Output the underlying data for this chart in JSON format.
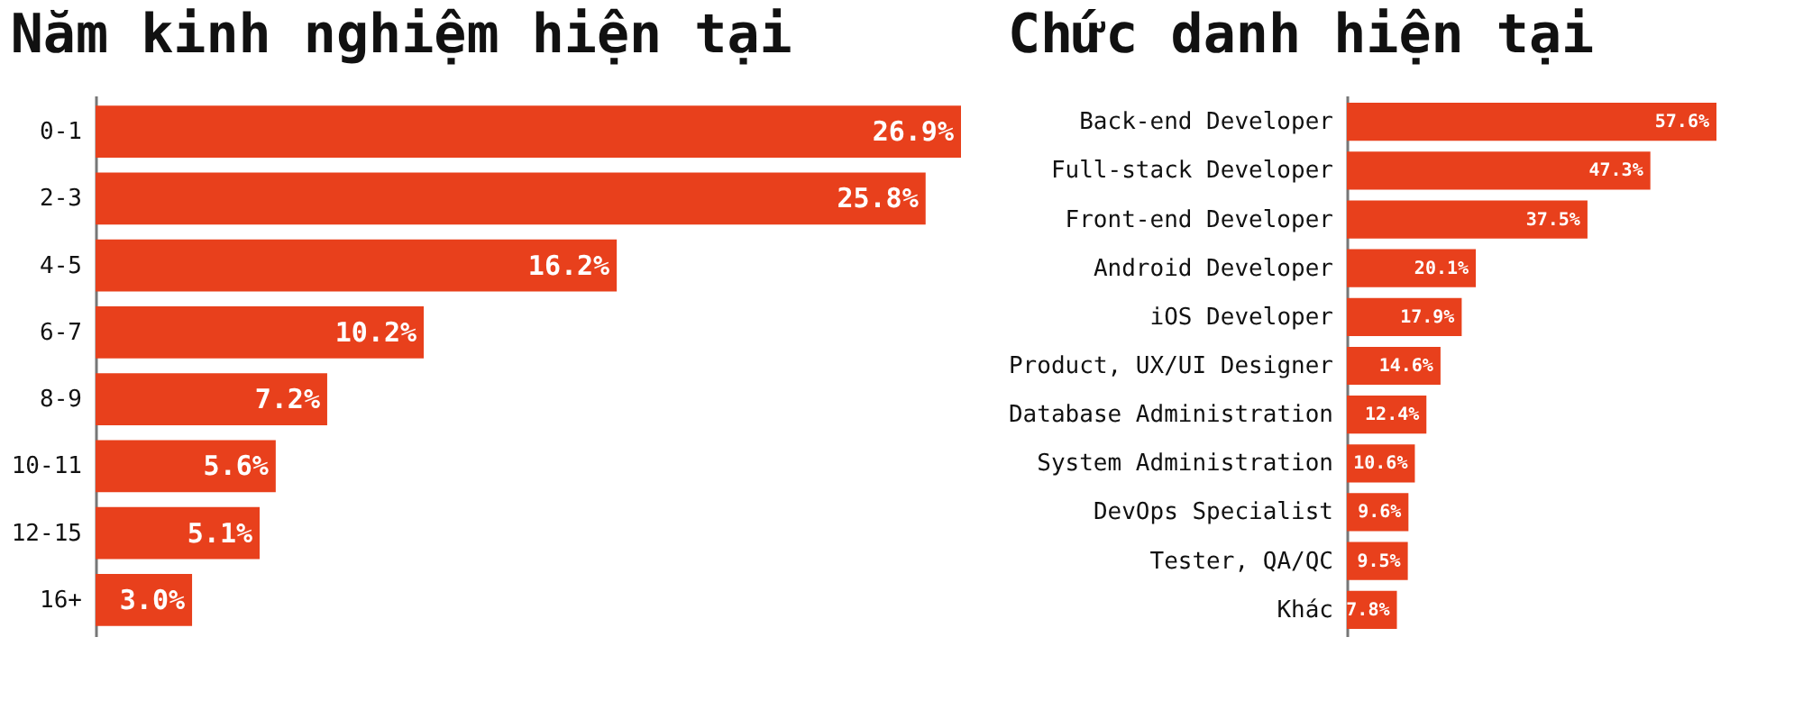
{
  "chart_data": [
    {
      "type": "bar",
      "orientation": "horizontal",
      "title": "Năm kinh nghiệm hiện tại",
      "categories": [
        "0-1",
        "2-3",
        "4-5",
        "6-7",
        "8-9",
        "10-11",
        "12-15",
        "16+"
      ],
      "values": [
        26.9,
        25.8,
        16.2,
        10.2,
        7.2,
        5.6,
        5.1,
        3.0
      ],
      "value_labels": [
        "26.9%",
        "25.8%",
        "16.2%",
        "10.2%",
        "7.2%",
        "5.6%",
        "5.1%",
        "3.0%"
      ],
      "color": "#e8401c",
      "grid": false,
      "legend": false
    },
    {
      "type": "bar",
      "orientation": "horizontal",
      "title": "Chức danh hiện tại",
      "categories": [
        "Back-end Developer",
        "Full-stack Developer",
        "Front-end Developer",
        "Android Developer",
        "iOS Developer",
        "Product, UX/UI Designer",
        "Database Administration",
        "System Administration",
        "DevOps Specialist",
        "Tester, QA/QC",
        "Khác"
      ],
      "values": [
        57.6,
        47.3,
        37.5,
        20.1,
        17.9,
        14.6,
        12.4,
        10.6,
        9.6,
        9.5,
        7.8
      ],
      "value_labels": [
        "57.6%",
        "47.3%",
        "37.5%",
        "20.1%",
        "17.9%",
        "14.6%",
        "12.4%",
        "10.6%",
        "9.6%",
        "9.5%",
        "7.8%"
      ],
      "color": "#e8401c",
      "grid": false,
      "legend": false
    }
  ]
}
